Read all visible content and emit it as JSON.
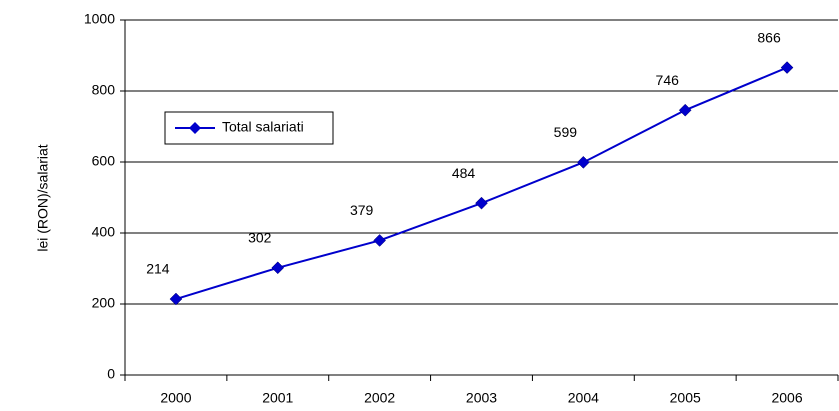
{
  "chart_data": {
    "type": "line",
    "y_label": "lei (RON)/salariat",
    "categories": [
      "2000",
      "2001",
      "2002",
      "2003",
      "2004",
      "2005",
      "2006"
    ],
    "series": [
      {
        "name": "Total salariati",
        "color": "#0000cc",
        "values": [
          214,
          302,
          379,
          484,
          599,
          746,
          866
        ]
      }
    ],
    "ylim": [
      0,
      1000
    ],
    "yticks": [
      0,
      200,
      400,
      600,
      800,
      1000
    ],
    "grid": true,
    "legend": "upper left"
  }
}
